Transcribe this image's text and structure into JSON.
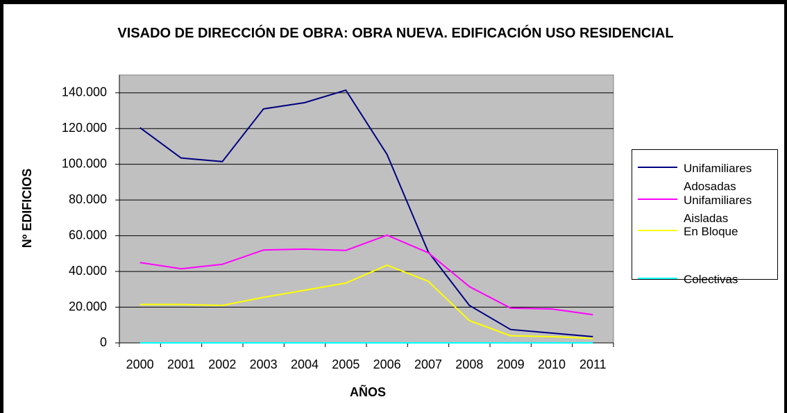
{
  "chart_data": {
    "type": "line",
    "title": "VISADO DE DIRECCIÓN DE OBRA: OBRA NUEVA. EDIFICACIÓN USO RESIDENCIAL",
    "x_label": "AÑOS",
    "y_label": "Nº EDIFICIOS",
    "categories": [
      "2000",
      "2001",
      "2002",
      "2003",
      "2004",
      "2005",
      "2006",
      "2007",
      "2008",
      "2009",
      "2010",
      "2011"
    ],
    "series": [
      {
        "name": "Unifamiliares Adosadas",
        "color": "#000080",
        "values": [
          120500,
          103500,
          101500,
          131000,
          134500,
          141500,
          105500,
          51000,
          21000,
          7500,
          5500,
          3500
        ]
      },
      {
        "name": "Unifamiliares Aisladas",
        "color": "#ff00ff",
        "values": [
          45000,
          41500,
          44000,
          52000,
          52500,
          51800,
          60300,
          50500,
          31500,
          19500,
          19000,
          15800
        ]
      },
      {
        "name": "En Bloque",
        "color": "#ffff00",
        "values": [
          21500,
          21500,
          21000,
          25500,
          29500,
          33500,
          43500,
          34500,
          12500,
          4000,
          3500,
          2500
        ]
      },
      {
        "name": "Colectivas",
        "color": "#00ffff",
        "values": [
          0,
          0,
          0,
          0,
          0,
          0,
          0,
          0,
          0,
          0,
          0,
          0
        ]
      }
    ],
    "ylim": [
      0,
      150000
    ],
    "yticks": [
      0,
      {
        "value": 20000,
        "label": "20.000"
      },
      {
        "value": 40000,
        "label": "40.000"
      },
      {
        "value": 60000,
        "label": "60.000"
      },
      {
        "value": 80000,
        "label": "80.000"
      },
      {
        "value": 100000,
        "label": "100.000"
      },
      {
        "value": 120000,
        "label": "120.000"
      },
      {
        "value": 140000,
        "label": "140.000"
      }
    ],
    "grid": true,
    "plot_background": "#c0c0c0",
    "legend": "right"
  }
}
